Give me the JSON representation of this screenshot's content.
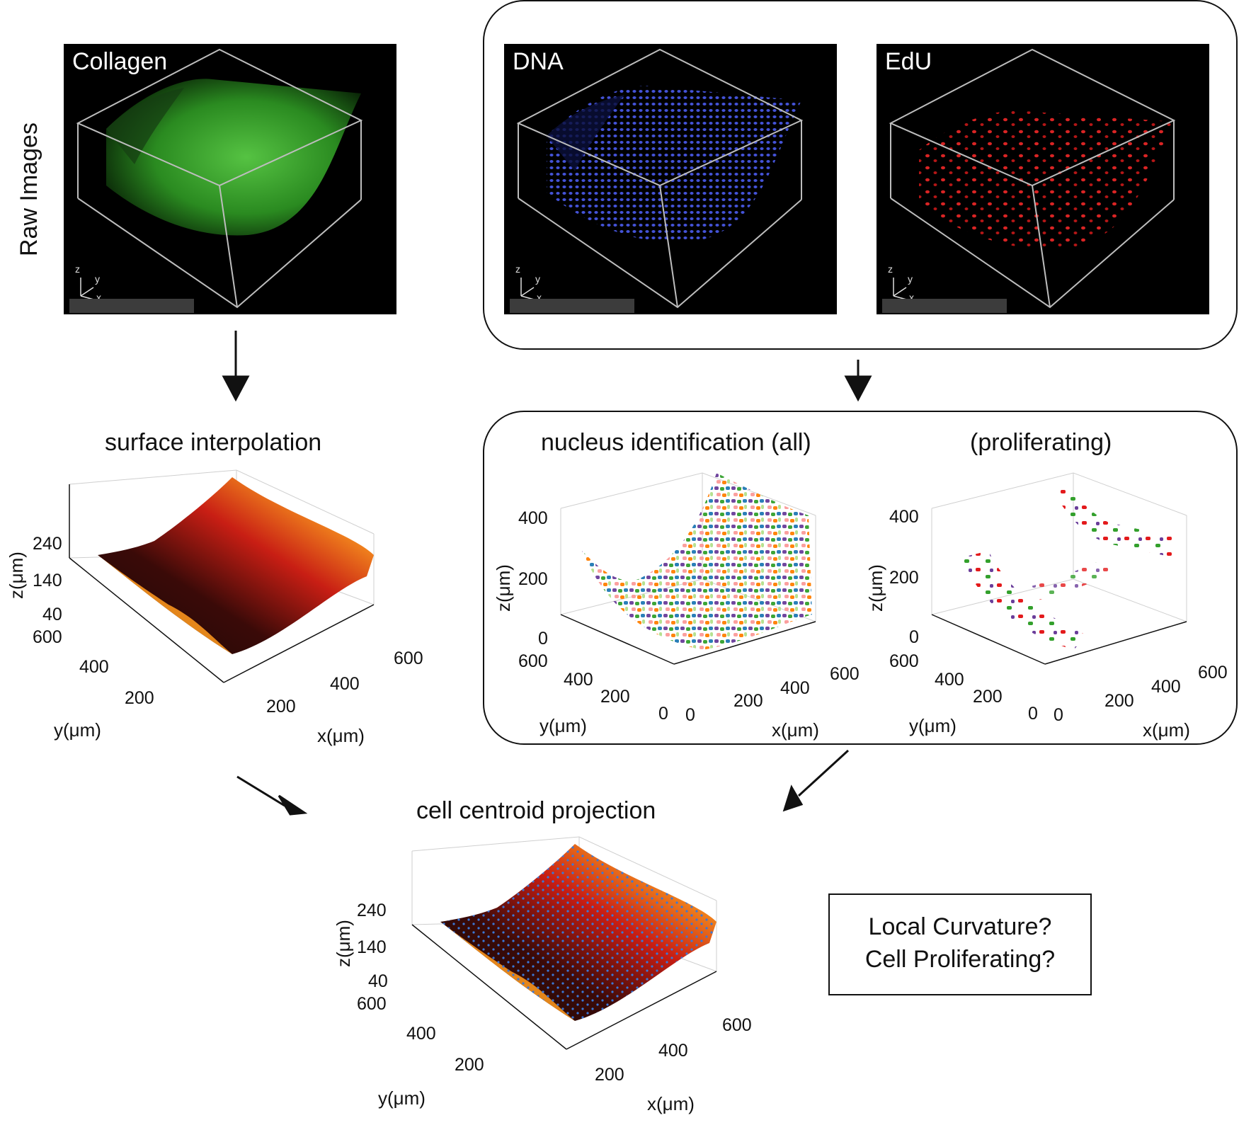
{
  "raw_images": {
    "side_label": "Raw Images",
    "panels": [
      {
        "label": "Collagen",
        "color": "#3fbf2f"
      },
      {
        "label": "DNA",
        "color": "#2f3fd8"
      },
      {
        "label": "EdU",
        "color": "#e02020"
      }
    ],
    "axis_letters": {
      "z": "z",
      "y": "y",
      "x": "x"
    }
  },
  "surface_interpolation": {
    "title": "surface interpolation",
    "z_ticks": [
      "240",
      "140",
      "40"
    ],
    "y_ticks": [
      "600",
      "400",
      "200"
    ],
    "x_ticks": [
      "200",
      "400",
      "600"
    ],
    "z_label": "z(μm)",
    "y_label": "y(μm)",
    "x_label": "x(μm)"
  },
  "nucleus_identification": {
    "title_all": "nucleus identification (all)",
    "title_prolif": "(proliferating)",
    "z_ticks": [
      "400",
      "200",
      "0"
    ],
    "y_ticks": [
      "600",
      "400",
      "200",
      "0"
    ],
    "x_ticks": [
      "0",
      "200",
      "400",
      "600"
    ],
    "z_label": "z(μm)",
    "y_label": "y(μm)",
    "x_label": "x(μm)"
  },
  "cell_centroid_projection": {
    "title": "cell centroid projection",
    "z_ticks": [
      "240",
      "140",
      "40"
    ],
    "y_ticks": [
      "600",
      "400",
      "200"
    ],
    "x_ticks": [
      "200",
      "400",
      "600"
    ],
    "z_label": "z(μm)",
    "y_label": "y(μm)",
    "x_label": "x(μm)"
  },
  "questions": {
    "line1": "Local Curvature?",
    "line2": "Cell Proliferating?"
  },
  "colors": {
    "surface_dark": "#1a0a05",
    "surface_red": "#c81e14",
    "surface_yellow": "#fff24a",
    "centroid_blue": "#3a78d8"
  }
}
